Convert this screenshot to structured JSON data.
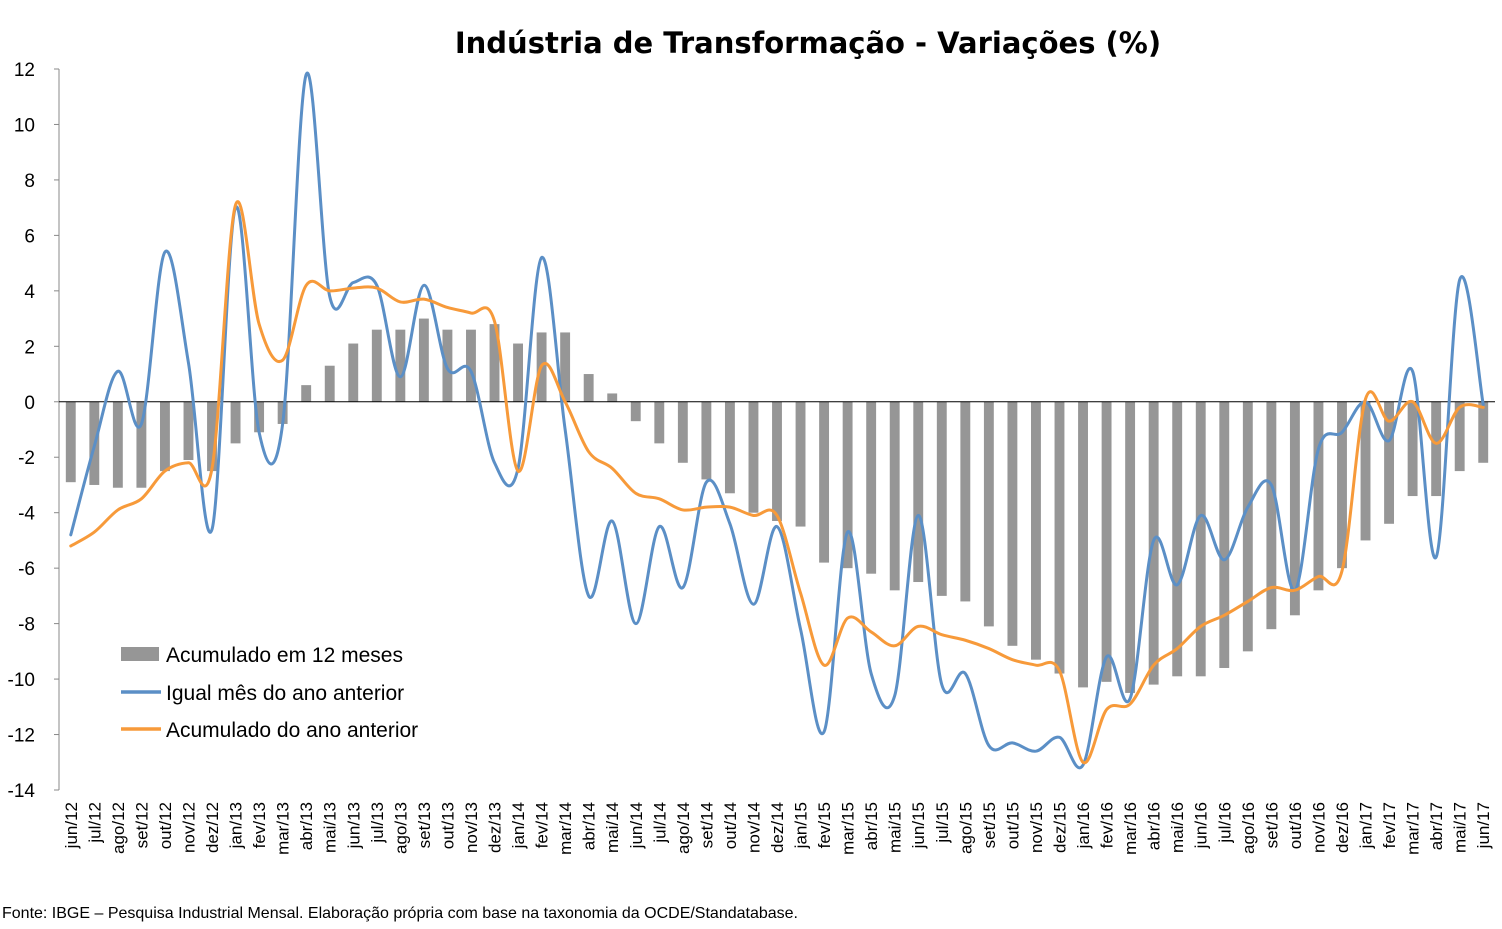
{
  "chart_data": {
    "type": "bar+line",
    "title": "Indústria de Transformação - Variações (%)",
    "categories": [
      "jun/12",
      "jul/12",
      "ago/12",
      "set/12",
      "out/12",
      "nov/12",
      "dez/12",
      "jan/13",
      "fev/13",
      "mar/13",
      "abr/13",
      "mai/13",
      "jun/13",
      "jul/13",
      "ago/13",
      "set/13",
      "out/13",
      "nov/13",
      "dez/13",
      "jan/14",
      "fev/14",
      "mar/14",
      "abr/14",
      "mai/14",
      "jun/14",
      "jul/14",
      "ago/14",
      "set/14",
      "out/14",
      "nov/14",
      "dez/14",
      "jan/15",
      "fev/15",
      "mar/15",
      "abr/15",
      "mai/15",
      "jun/15",
      "jul/15",
      "ago/15",
      "set/15",
      "out/15",
      "nov/15",
      "dez/15",
      "jan/16",
      "fev/16",
      "mar/16",
      "abr/16",
      "mai/16",
      "jun/16",
      "jul/16",
      "ago/16",
      "set/16",
      "out/16",
      "nov/16",
      "dez/16",
      "jan/17",
      "fev/17",
      "mar/17",
      "abr/17",
      "mai/17",
      "jun/17"
    ],
    "ylim": [
      -14,
      12
    ],
    "yticks": [
      "12",
      "10",
      "8",
      "6",
      "4",
      "2",
      "0",
      "-2",
      "-4",
      "-6",
      "-8",
      "-10",
      "-12",
      "-14"
    ],
    "series": [
      {
        "name": "Acumulado em 12 meses",
        "type": "bar",
        "color": "#969696",
        "values": [
          -2.9,
          -3.0,
          -3.1,
          -3.1,
          -2.5,
          -2.1,
          -2.5,
          -1.5,
          -1.1,
          -0.8,
          0.6,
          1.3,
          2.1,
          2.6,
          2.6,
          3.0,
          2.6,
          2.6,
          2.8,
          2.1,
          2.5,
          2.5,
          1.0,
          0.3,
          -0.7,
          -1.5,
          -2.2,
          -2.8,
          -3.3,
          -4.0,
          -4.3,
          -4.5,
          -5.8,
          -6.0,
          -6.2,
          -6.8,
          -6.5,
          -7.0,
          -7.2,
          -8.1,
          -8.8,
          -9.3,
          -9.8,
          -10.3,
          -10.1,
          -10.5,
          -10.2,
          -9.9,
          -9.9,
          -9.6,
          -9.0,
          -8.2,
          -7.7,
          -6.8,
          -6.0,
          -5.0,
          -4.4,
          -3.4,
          -3.4,
          -2.5,
          -2.2
        ]
      },
      {
        "name": "Igual mês do ano anterior",
        "type": "line",
        "color": "#5b8fc6",
        "values": [
          -4.8,
          -1.6,
          1.1,
          -0.8,
          5.4,
          1.4,
          -4.6,
          7.0,
          -1.1,
          -0.8,
          11.8,
          3.8,
          4.3,
          4.2,
          0.9,
          4.2,
          1.2,
          1.1,
          -2.2,
          -2.4,
          5.2,
          -1.0,
          -7.0,
          -4.3,
          -8.0,
          -4.5,
          -6.7,
          -2.9,
          -4.4,
          -7.3,
          -4.5,
          -8.2,
          -11.9,
          -4.7,
          -9.8,
          -10.6,
          -4.1,
          -10.2,
          -9.8,
          -12.4,
          -12.3,
          -12.6,
          -12.1,
          -13.1,
          -9.2,
          -10.7,
          -5.0,
          -6.6,
          -4.1,
          -5.7,
          -3.8,
          -3.0,
          -6.8,
          -1.7,
          -1.1,
          0.0,
          -1.4,
          1.1,
          -5.6,
          4.4,
          -0.1
        ]
      },
      {
        "name": "Acumulado do ano anterior",
        "type": "line",
        "color": "#f79a3a",
        "values": [
          -5.2,
          -4.7,
          -3.9,
          -3.5,
          -2.5,
          -2.2,
          -2.4,
          7.1,
          2.8,
          1.5,
          4.2,
          4.0,
          4.1,
          4.1,
          3.6,
          3.7,
          3.4,
          3.2,
          2.9,
          -2.5,
          1.3,
          0.0,
          -1.8,
          -2.4,
          -3.3,
          -3.5,
          -3.9,
          -3.8,
          -3.8,
          -4.1,
          -4.1,
          -6.9,
          -9.5,
          -7.8,
          -8.3,
          -8.8,
          -8.1,
          -8.4,
          -8.6,
          -8.9,
          -9.3,
          -9.5,
          -9.7,
          -13.0,
          -11.1,
          -10.9,
          -9.5,
          -8.9,
          -8.1,
          -7.7,
          -7.2,
          -6.7,
          -6.8,
          -6.3,
          -6.1,
          0.1,
          -0.7,
          0.0,
          -1.5,
          -0.2,
          -0.2
        ]
      }
    ],
    "legend": {
      "position": "bottom-left",
      "items": [
        "Acumulado em 12 meses",
        "Igual mês do ano anterior",
        "Acumulado do ano anterior"
      ]
    },
    "grid": false,
    "zero_line": true
  },
  "source": "Fonte: IBGE – Pesquisa Industrial Mensal. Elaboração própria com base na taxonomia da OCDE/Standatabase."
}
